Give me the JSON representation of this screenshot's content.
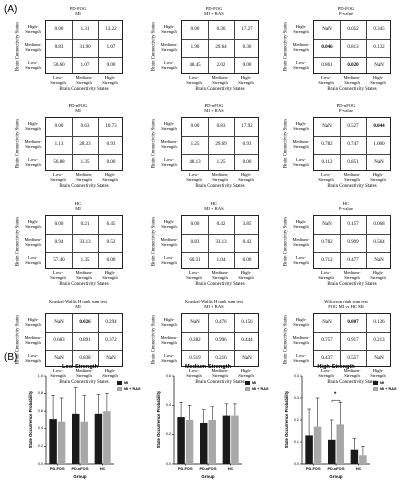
{
  "panel_a_label": "(A)",
  "panel_b_label": "(B)",
  "matrix_axis_y": "Brain Connectivity States",
  "matrix_axis_x": "Brain Connectivity States",
  "row_labels": [
    "High-\nStrength",
    "Medium-\nStrength",
    "Low-\nStrength"
  ],
  "col_labels": [
    "Low-\nStrength",
    "Medium-\nStrength",
    "High-\nStrength"
  ],
  "matrices": [
    {
      "title": "PD-FOG\nMI",
      "cells": [
        [
          "0.00",
          "1.31",
          "13.22"
        ],
        [
          "0.83",
          "31.90",
          "1.07"
        ],
        [
          "50.60",
          "1.07",
          "0.00"
        ]
      ],
      "bold": []
    },
    {
      "title": "PD-FOG\nMI + RAS",
      "cells": [
        [
          "0.00",
          "0.36",
          "17.27"
        ],
        [
          "1.90",
          "29.64",
          "0.36"
        ],
        [
          "48.45",
          "2.02",
          "0.00"
        ]
      ],
      "bold": []
    },
    {
      "title": "PD-FOG\nP-value",
      "cells": [
        [
          "NaN",
          "0.052",
          "0.345"
        ],
        [
          "0.046",
          "0.813",
          "0.132"
        ],
        [
          "0.861",
          "0.020",
          "NaN"
        ]
      ],
      "bold": [
        [
          1,
          0
        ],
        [
          2,
          1
        ]
      ]
    },
    {
      "title": "PD-nFOG\nMI",
      "cells": [
        [
          "0.00",
          "0.63",
          "10.73"
        ],
        [
          "1.13",
          "28.33",
          "0.93"
        ],
        [
          "56.88",
          "1.35",
          "0.00"
        ]
      ],
      "bold": []
    },
    {
      "title": "PD-nFOG\nMI + RAS",
      "cells": [
        [
          "0.00",
          "0.83",
          "17.92"
        ],
        [
          "1.25",
          "29.69",
          "0.93"
        ],
        [
          "48.13",
          "1.25",
          "0.00"
        ]
      ],
      "bold": []
    },
    {
      "title": "PD-nFOG\nP-value",
      "cells": [
        [
          "NaN",
          "0.527",
          "0.044"
        ],
        [
          "0.782",
          "0.747",
          "1.000"
        ],
        [
          "0.112",
          "0.851",
          "NaN"
        ]
      ],
      "bold": [
        [
          0,
          2
        ]
      ]
    },
    {
      "title": "HC\nMI",
      "cells": [
        [
          "0.00",
          "0.21",
          "6.45"
        ],
        [
          "0.94",
          "33.13",
          "0.52"
        ],
        [
          "57.40",
          "1.35",
          "0.00"
        ]
      ],
      "bold": []
    },
    {
      "title": "HC\nMI + RAS",
      "cells": [
        [
          "0.00",
          "0.42",
          "3.85"
        ],
        [
          "0.83",
          "33.13",
          "0.42"
        ],
        [
          "60.31",
          "1.04",
          "0.00"
        ]
      ],
      "bold": []
    },
    {
      "title": "HC\nP-value",
      "cells": [
        [
          "NaN",
          "0.157",
          "0.068"
        ],
        [
          "0.782",
          "0.909",
          "0.564"
        ],
        [
          "0.712",
          "0.477",
          "NaN"
        ]
      ],
      "bold": []
    },
    {
      "title": "Kruskal-Wallis H rank sum test\nMI",
      "cells": [
        [
          "NaN",
          "0.026",
          "0.294"
        ],
        [
          "0.683",
          "0.891",
          "0.372"
        ],
        [
          "NaN",
          "0.838",
          "NaN"
        ]
      ],
      "bold": [
        [
          0,
          1
        ]
      ]
    },
    {
      "title": "Kruskal-Wallis H rank sum test\nMI + RAS",
      "cells": [
        [
          "NaN",
          "0.476",
          "0.156"
        ],
        [
          "0.282",
          "0.996",
          "0.444"
        ],
        [
          "0.519",
          "0.216",
          "NaN"
        ]
      ],
      "bold": []
    },
    {
      "title": "Wilcoxon rank sum test\nFOG MI vs HC MI",
      "cells": [
        [
          "NaN",
          "0.007",
          "0.136"
        ],
        [
          "0.757",
          "0.917",
          "0.213"
        ],
        [
          "0.437",
          "0.557",
          "NaN"
        ]
      ],
      "bold": [
        [
          0,
          1
        ]
      ]
    }
  ],
  "chart_data": [
    {
      "type": "bar",
      "title": "Low-Strength",
      "xlabel": "Group",
      "ylabel": "State Occurrence Probability",
      "categories": [
        "PD-FOG",
        "PD-nFOG",
        "HC"
      ],
      "ylim": [
        0,
        1.0
      ],
      "yticks": [
        "0.0",
        "0.2",
        "0.4",
        "0.6",
        "0.8",
        "1.0"
      ],
      "series": [
        {
          "name": "MI",
          "values": [
            0.51,
            0.57,
            0.57
          ],
          "err": [
            0.27,
            0.3,
            0.22
          ]
        },
        {
          "name": "MI + RAS",
          "values": [
            0.48,
            0.48,
            0.6
          ],
          "err": [
            0.27,
            0.3,
            0.2
          ]
        }
      ],
      "legend": "top-right"
    },
    {
      "type": "bar",
      "title": "Medium-Strength",
      "xlabel": "Group",
      "ylabel": "State Occurrence Probability",
      "categories": [
        "PD-FOG",
        "PD-nFOG",
        "HC"
      ],
      "ylim": [
        0,
        0.6
      ],
      "yticks": [
        "0.0",
        "0.2",
        "0.4",
        "0.6"
      ],
      "series": [
        {
          "name": "MI",
          "values": [
            0.32,
            0.28,
            0.33
          ],
          "err": [
            0.1,
            0.09,
            0.08
          ]
        },
        {
          "name": "MI + RAS",
          "values": [
            0.3,
            0.3,
            0.33
          ],
          "err": [
            0.1,
            0.09,
            0.08
          ]
        }
      ],
      "legend": "top-right"
    },
    {
      "type": "bar",
      "title": "High-Strength",
      "xlabel": "Group",
      "ylabel": "State Occurrence Probability",
      "categories": [
        "PD-FOG",
        "PD-nFOG",
        "HC"
      ],
      "ylim": [
        0,
        0.4
      ],
      "yticks": [
        "0.0",
        "0.1",
        "0.2",
        "0.3",
        "0.4"
      ],
      "series": [
        {
          "name": "MI",
          "values": [
            0.13,
            0.11,
            0.065
          ],
          "err": [
            0.12,
            0.09,
            0.05
          ]
        },
        {
          "name": "MI + RAS",
          "values": [
            0.17,
            0.18,
            0.04
          ],
          "err": [
            0.13,
            0.1,
            0.04
          ]
        }
      ],
      "legend": "top-right",
      "annotation": "*"
    }
  ],
  "colors": {
    "MI": "#1a1a1a",
    "MI + RAS": "#a8a8a8"
  }
}
